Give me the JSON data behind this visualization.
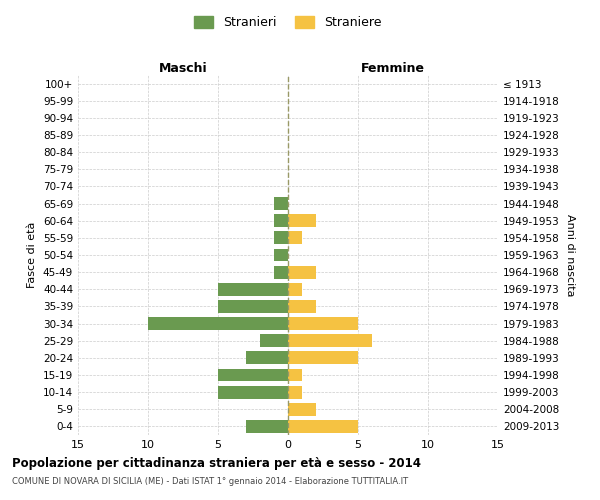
{
  "age_groups": [
    "100+",
    "95-99",
    "90-94",
    "85-89",
    "80-84",
    "75-79",
    "70-74",
    "65-69",
    "60-64",
    "55-59",
    "50-54",
    "45-49",
    "40-44",
    "35-39",
    "30-34",
    "25-29",
    "20-24",
    "15-19",
    "10-14",
    "5-9",
    "0-4"
  ],
  "birth_years": [
    "≤ 1913",
    "1914-1918",
    "1919-1923",
    "1924-1928",
    "1929-1933",
    "1934-1938",
    "1939-1943",
    "1944-1948",
    "1949-1953",
    "1954-1958",
    "1959-1963",
    "1964-1968",
    "1969-1973",
    "1974-1978",
    "1979-1983",
    "1984-1988",
    "1989-1993",
    "1994-1998",
    "1999-2003",
    "2004-2008",
    "2009-2013"
  ],
  "maschi": [
    0,
    0,
    0,
    0,
    0,
    0,
    0,
    1,
    1,
    1,
    1,
    1,
    5,
    5,
    10,
    2,
    3,
    5,
    5,
    0,
    3
  ],
  "femmine": [
    0,
    0,
    0,
    0,
    0,
    0,
    0,
    0,
    2,
    1,
    0,
    2,
    1,
    2,
    5,
    6,
    5,
    1,
    1,
    2,
    5
  ],
  "maschi_color": "#6a9a50",
  "femmine_color": "#f5c242",
  "grid_color": "#cccccc",
  "center_line_color": "#999966",
  "bg_color": "#ffffff",
  "title": "Popolazione per cittadinanza straniera per età e sesso - 2014",
  "subtitle": "COMUNE DI NOVARA DI SICILIA (ME) - Dati ISTAT 1° gennaio 2014 - Elaborazione TUTTITALIA.IT",
  "xlabel_left": "Maschi",
  "xlabel_right": "Femmine",
  "ylabel_left": "Fasce di età",
  "ylabel_right": "Anni di nascita",
  "legend_maschi": "Stranieri",
  "legend_femmine": "Straniere",
  "xlim": 15,
  "xticks": [
    -15,
    -10,
    -5,
    0,
    5,
    10,
    15
  ],
  "xticklabels": [
    "15",
    "10",
    "5",
    "0",
    "5",
    "10",
    "15"
  ]
}
